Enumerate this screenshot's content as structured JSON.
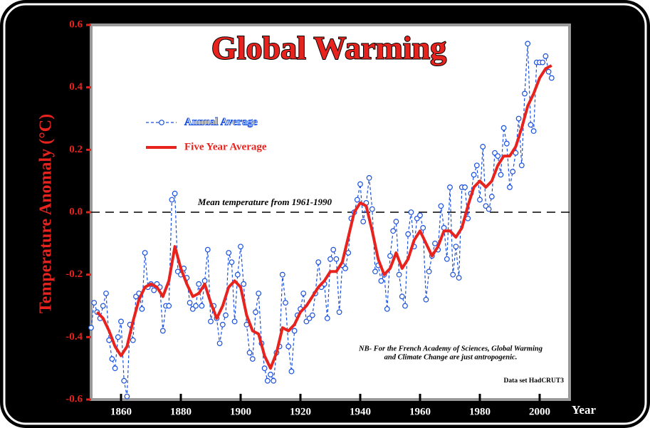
{
  "chart_data": {
    "type": "line",
    "title": "Global Warming",
    "y_label": "Temperature Anomaly (°C)",
    "x_label": "Year",
    "xlim": [
      1850,
      2010
    ],
    "ylim": [
      -0.6,
      0.6
    ],
    "xticks": [
      1860,
      1880,
      1900,
      1920,
      1940,
      1960,
      1980,
      2000
    ],
    "yticks": [
      -0.6,
      -0.4,
      -0.2,
      {
        "value": 0,
        "label": "0.0"
      },
      0.2,
      0.4,
      0.6
    ],
    "reference_line": {
      "value": 0,
      "label": "Mean temperature from 1961-1990"
    },
    "annotations": [
      "NB- For the French Academy of Sciences, Global Warming",
      "and Climate Change  are just antropogenic.",
      "Data set HadCRUT3"
    ],
    "series": [
      {
        "name": "Annual Average",
        "color": "#1a50e0",
        "style": "dashed-markers",
        "x": [
          1850,
          1851,
          1852,
          1853,
          1854,
          1855,
          1856,
          1857,
          1858,
          1859,
          1860,
          1861,
          1862,
          1863,
          1864,
          1865,
          1866,
          1867,
          1868,
          1869,
          1870,
          1871,
          1872,
          1873,
          1874,
          1875,
          1876,
          1877,
          1878,
          1879,
          1880,
          1881,
          1882,
          1883,
          1884,
          1885,
          1886,
          1887,
          1888,
          1889,
          1890,
          1891,
          1892,
          1893,
          1894,
          1895,
          1896,
          1897,
          1898,
          1899,
          1900,
          1901,
          1902,
          1903,
          1904,
          1905,
          1906,
          1907,
          1908,
          1909,
          1910,
          1911,
          1912,
          1913,
          1914,
          1915,
          1916,
          1917,
          1918,
          1919,
          1920,
          1921,
          1922,
          1923,
          1924,
          1925,
          1926,
          1927,
          1928,
          1929,
          1930,
          1931,
          1932,
          1933,
          1934,
          1935,
          1936,
          1937,
          1938,
          1939,
          1940,
          1941,
          1942,
          1943,
          1944,
          1945,
          1946,
          1947,
          1948,
          1949,
          1950,
          1951,
          1952,
          1953,
          1954,
          1955,
          1956,
          1957,
          1958,
          1959,
          1960,
          1961,
          1962,
          1963,
          1964,
          1965,
          1966,
          1967,
          1968,
          1969,
          1970,
          1971,
          1972,
          1973,
          1974,
          1975,
          1976,
          1977,
          1978,
          1979,
          1980,
          1981,
          1982,
          1983,
          1984,
          1985,
          1986,
          1987,
          1988,
          1989,
          1990,
          1991,
          1992,
          1993,
          1994,
          1995,
          1996,
          1997,
          1998,
          1999,
          2000,
          2001,
          2002,
          2003,
          2004
        ],
        "values": [
          -0.37,
          -0.29,
          -0.32,
          -0.34,
          -0.3,
          -0.26,
          -0.41,
          -0.47,
          -0.5,
          -0.4,
          -0.35,
          -0.54,
          -0.59,
          -0.36,
          -0.41,
          -0.27,
          -0.26,
          -0.31,
          -0.13,
          -0.24,
          -0.23,
          -0.25,
          -0.23,
          -0.24,
          -0.38,
          -0.3,
          -0.3,
          0.04,
          0.06,
          -0.19,
          -0.2,
          -0.18,
          -0.21,
          -0.29,
          -0.31,
          -0.3,
          -0.23,
          -0.3,
          -0.22,
          -0.12,
          -0.35,
          -0.3,
          -0.34,
          -0.42,
          -0.36,
          -0.33,
          -0.13,
          -0.16,
          -0.35,
          -0.2,
          -0.11,
          -0.23,
          -0.36,
          -0.45,
          -0.47,
          -0.32,
          -0.26,
          -0.42,
          -0.5,
          -0.54,
          -0.52,
          -0.54,
          -0.45,
          -0.43,
          -0.2,
          -0.29,
          -0.43,
          -0.51,
          -0.38,
          -0.33,
          -0.31,
          -0.26,
          -0.35,
          -0.34,
          -0.33,
          -0.26,
          -0.16,
          -0.24,
          -0.23,
          -0.34,
          -0.15,
          -0.12,
          -0.15,
          -0.32,
          -0.17,
          -0.18,
          -0.13,
          -0.02,
          0.0,
          0.04,
          0.09,
          -0.03,
          0.03,
          0.11,
          0.01,
          -0.19,
          -0.17,
          -0.22,
          -0.2,
          -0.31,
          -0.14,
          -0.06,
          -0.03,
          -0.2,
          -0.27,
          -0.3,
          -0.07,
          0.0,
          -0.11,
          -0.02,
          -0.01,
          -0.05,
          -0.28,
          -0.19,
          -0.14,
          -0.1,
          -0.12,
          0.02,
          -0.05,
          -0.15,
          0.08,
          -0.2,
          -0.11,
          -0.21,
          0.08,
          0.08,
          -0.02,
          0.06,
          0.12,
          0.15,
          0.04,
          0.21,
          0.02,
          0.01,
          0.05,
          0.19,
          0.18,
          0.12,
          0.27,
          0.22,
          0.08,
          0.13,
          0.19,
          0.3,
          0.15,
          0.38,
          0.54,
          0.28,
          0.26,
          0.48,
          0.48,
          0.48,
          0.5,
          0.45,
          0.43
        ]
      },
      {
        "name": "Five Year Average",
        "color": "#e8231e",
        "style": "solid",
        "x": [
          1852,
          1854,
          1856,
          1858,
          1860,
          1862,
          1864,
          1866,
          1868,
          1870,
          1872,
          1874,
          1876,
          1878,
          1880,
          1882,
          1884,
          1886,
          1888,
          1890,
          1892,
          1894,
          1896,
          1898,
          1900,
          1902,
          1904,
          1906,
          1908,
          1910,
          1912,
          1914,
          1916,
          1918,
          1920,
          1922,
          1924,
          1926,
          1928,
          1930,
          1932,
          1934,
          1936,
          1938,
          1940,
          1942,
          1944,
          1946,
          1948,
          1950,
          1952,
          1954,
          1956,
          1958,
          1960,
          1962,
          1964,
          1966,
          1968,
          1970,
          1972,
          1974,
          1976,
          1978,
          1980,
          1982,
          1984,
          1986,
          1988,
          1990,
          1992,
          1994,
          1996,
          1998,
          2000,
          2002,
          2004
        ],
        "values": [
          -0.32,
          -0.34,
          -0.38,
          -0.43,
          -0.46,
          -0.43,
          -0.35,
          -0.28,
          -0.24,
          -0.23,
          -0.24,
          -0.27,
          -0.22,
          -0.11,
          -0.18,
          -0.23,
          -0.27,
          -0.26,
          -0.23,
          -0.29,
          -0.34,
          -0.3,
          -0.24,
          -0.22,
          -0.24,
          -0.33,
          -0.38,
          -0.39,
          -0.46,
          -0.5,
          -0.45,
          -0.37,
          -0.38,
          -0.36,
          -0.32,
          -0.3,
          -0.27,
          -0.24,
          -0.22,
          -0.19,
          -0.19,
          -0.16,
          -0.08,
          0.0,
          0.03,
          0.02,
          -0.06,
          -0.15,
          -0.2,
          -0.18,
          -0.13,
          -0.18,
          -0.15,
          -0.09,
          -0.06,
          -0.1,
          -0.14,
          -0.11,
          -0.06,
          -0.06,
          -0.08,
          -0.05,
          0.02,
          0.08,
          0.1,
          0.08,
          0.1,
          0.15,
          0.18,
          0.18,
          0.21,
          0.27,
          0.34,
          0.38,
          0.43,
          0.46,
          0.47
        ]
      }
    ]
  }
}
